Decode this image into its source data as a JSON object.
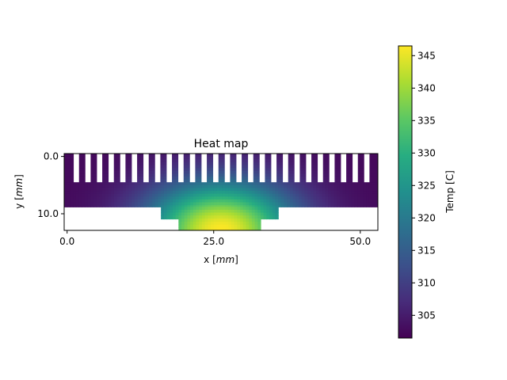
{
  "chart_data": {
    "type": "heatmap",
    "title": "Heat map",
    "xlabel_prefix": "x [",
    "xlabel_unit": "mm",
    "xlabel_suffix": "]",
    "ylabel_prefix": "y [",
    "ylabel_unit": "mm",
    "ylabel_suffix": "]",
    "xlim": [
      -0.5,
      53.0
    ],
    "ylim": [
      12.9,
      -0.5
    ],
    "xticks": [
      {
        "value": 0.0,
        "label": "0.0"
      },
      {
        "value": 25.0,
        "label": "25.0"
      },
      {
        "value": 50.0,
        "label": "50.0"
      }
    ],
    "yticks": [
      {
        "value": 0.0,
        "label": "0.0"
      },
      {
        "value": 10.0,
        "label": "10.0"
      }
    ],
    "colormap": "viridis",
    "colorbar": {
      "label": "Temp [C]",
      "range": [
        301.5,
        346.5
      ],
      "ticks": [
        {
          "value": 305,
          "label": "305"
        },
        {
          "value": 310,
          "label": "310"
        },
        {
          "value": 315,
          "label": "315"
        },
        {
          "value": 320,
          "label": "320"
        },
        {
          "value": 325,
          "label": "325"
        },
        {
          "value": 330,
          "label": "330"
        },
        {
          "value": 335,
          "label": "335"
        },
        {
          "value": 340,
          "label": "340"
        },
        {
          "value": 345,
          "label": "345"
        }
      ]
    },
    "regions": [
      {
        "name": "fins",
        "x": [
          -0.5,
          53.0
        ],
        "y": [
          -0.5,
          4.5
        ],
        "fin_count": 27,
        "gap_width": 0.9
      },
      {
        "name": "base",
        "x": [
          -0.5,
          53.0
        ],
        "y": [
          4.5,
          8.8
        ]
      },
      {
        "name": "spreader",
        "x": [
          16.0,
          36.0
        ],
        "y": [
          8.8,
          10.9
        ]
      },
      {
        "name": "chip",
        "x": [
          19.0,
          33.0
        ],
        "y": [
          10.9,
          12.9
        ]
      }
    ],
    "field": {
      "center_x": 26.2,
      "bottom_y": 12.9,
      "base_temp": 302.5,
      "peak_temp": 346.5,
      "scale_x": 9.0,
      "scale_y": 6.0
    }
  }
}
